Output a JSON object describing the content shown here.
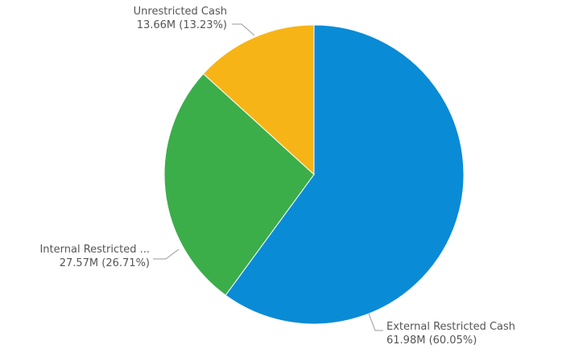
{
  "chart_data": {
    "type": "pie",
    "title": "",
    "slices": [
      {
        "name": "External Restricted Cash",
        "value": 61.98,
        "value_label": "61.98M (60.05%)",
        "percent": 60.05,
        "color": "#0A8BD6"
      },
      {
        "name": "Internal Restricted ...",
        "value": 27.57,
        "value_label": "27.57M (26.71%)",
        "percent": 26.71,
        "color": "#3BAE4A"
      },
      {
        "name": "Unrestricted Cash",
        "value": 13.66,
        "value_label": "13.66M (13.23%)",
        "percent": 13.23,
        "color": "#F7B416"
      }
    ],
    "start": "top",
    "direction": "clockwise",
    "unit": "M"
  }
}
